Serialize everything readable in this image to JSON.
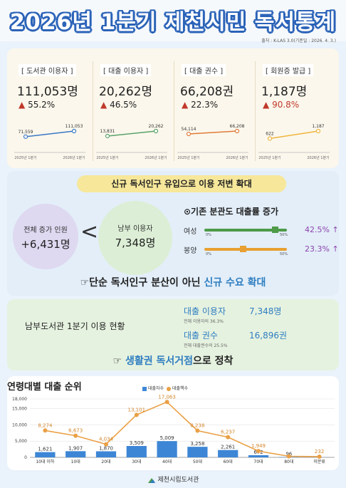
{
  "header": {
    "title": "2026년 1분기 제천시민 독서통계",
    "source": "출처 : K-LAS 3.0(기준일 : 2026. 4. 3.)"
  },
  "kpis": [
    {
      "label": "[ 도서관 이용자 ]",
      "value": "111,053명",
      "change": "55.2%",
      "x": [
        "2025년 1분기",
        "2026년 1분기"
      ],
      "y": [
        71559,
        111053
      ],
      "y_labels": [
        "71,559",
        "111,053"
      ]
    },
    {
      "label": "[ 대출 이용자 ]",
      "value": "20,262명",
      "change": "46.5%",
      "x": [
        "2025년 1분기",
        "2026년 1분기"
      ],
      "y": [
        13831,
        20262
      ],
      "y_labels": [
        "13,831",
        "20,262"
      ]
    },
    {
      "label": "[ 대출 권수 ]",
      "value": "66,208권",
      "change": "22.3%",
      "x": [
        "2025년 1분기",
        "2026년 1분기"
      ],
      "y": [
        54114,
        66208
      ],
      "y_labels": [
        "54,114",
        "66,208"
      ]
    },
    {
      "label": "[ 회원증 발급 ]",
      "value": "1,187명",
      "change": "90.8%",
      "x": [
        "2025년 1분기",
        "2026년 1분기"
      ],
      "y": [
        622,
        1187
      ],
      "y_labels": [
        "622",
        "1,187"
      ]
    }
  ],
  "colors": {
    "title_outline": "#2b63b8",
    "up_arrow": "#c0392b",
    "kpi_lines": [
      "#3a78c6",
      "#5aa36a",
      "#e07b39",
      "#f0b43c"
    ],
    "purple": "#8e44ad",
    "green": "#4e9a48",
    "orange": "#e8a032",
    "accent_blue": "#2f7ec0",
    "bar_blue": "#3d86d6",
    "line_orange": "#eaa046"
  },
  "band": {
    "pill": "신규 독서인구 유입으로 이용 저변 확대",
    "total_label": "전체 증가 인원",
    "total_value": "+6,431명",
    "lt": "<",
    "south_label": "남부 이용자",
    "south_value": "7,348명",
    "dist_title": "⊙기존 분관도 대출률 증가",
    "dist": [
      {
        "label": "여성",
        "value": "42.5% ↑",
        "level": 0.85,
        "tick0": "0%",
        "tick1": "50%"
      },
      {
        "label": "봉양",
        "value": "23.3% ↑",
        "level": 0.466,
        "tick0": "0%",
        "tick1": "50%"
      }
    ],
    "line_a": "☞단순 독서인구 분산이 아닌 ",
    "line_b": "신규 수요 확대"
  },
  "south": {
    "title": "남부도서관 1분기 이용 현황",
    "rows": [
      {
        "label": "대출 이용자",
        "value": "7,348명",
        "note": "전체 이용자의 36.3%"
      },
      {
        "label": "대출 권수",
        "value": "16,896권",
        "note": "전체 대출권수의 25.5%"
      }
    ],
    "line_a": "☞ ",
    "line_b": "생활권 독서거점",
    "line_c": "으로 정착"
  },
  "chart_data": {
    "type": "bar",
    "title": "연령대별 대출 순위",
    "categories": [
      "10대 이하",
      "10대",
      "20대",
      "30대",
      "40대",
      "50대",
      "60대",
      "70대",
      "80대",
      "미분류"
    ],
    "series": [
      {
        "name": "대출자수",
        "type": "bar",
        "values": [
          1621,
          1907,
          1870,
          3509,
          5009,
          3258,
          2261,
          672,
          96,
          30
        ]
      },
      {
        "name": "대출책수",
        "type": "line",
        "values": [
          8274,
          6673,
          4034,
          13101,
          17063,
          8238,
          6237,
          1949,
          331,
          232
        ]
      }
    ],
    "bar_labels": [
      "1,621",
      "1,907",
      "1,870",
      "3,509",
      "5,009",
      "3,258",
      "2,261",
      "672",
      "96",
      ""
    ],
    "line_labels": [
      "8,274",
      "6,673",
      "4,034",
      "13,101",
      "17,063",
      "8,238",
      "6,237",
      "1,949",
      "",
      "232"
    ],
    "ylim": [
      0,
      18000
    ],
    "yticks": [
      "0",
      "5,000",
      "10,000",
      "15,000",
      "18,000"
    ],
    "ytick_values": [
      0,
      5000,
      10000,
      15000,
      18000
    ]
  },
  "footer": {
    "text": "제천시립도서관"
  }
}
